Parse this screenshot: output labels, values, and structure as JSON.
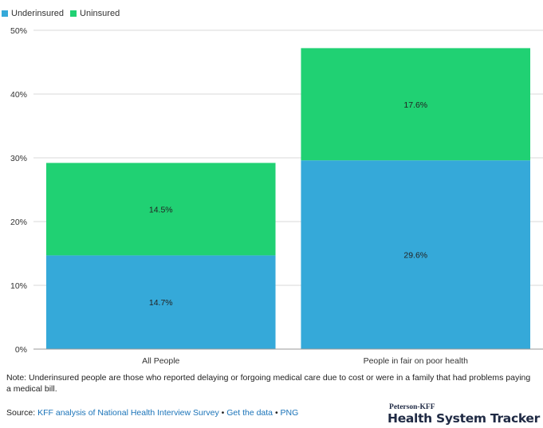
{
  "legend": {
    "items": [
      {
        "label": "Underinsured",
        "color": "#35a9d9"
      },
      {
        "label": "Uninsured",
        "color": "#20d173"
      }
    ]
  },
  "chart_data": {
    "type": "bar",
    "stacked": true,
    "categories": [
      "All People",
      "People in fair on poor health"
    ],
    "series": [
      {
        "name": "Underinsured",
        "color": "#35a9d9",
        "values": [
          14.7,
          29.6
        ],
        "labels": [
          "14.7%",
          "29.6%"
        ]
      },
      {
        "name": "Uninsured",
        "color": "#20d173",
        "values": [
          14.5,
          17.6
        ],
        "labels": [
          "14.5%",
          "17.6%"
        ]
      }
    ],
    "ylim": [
      0,
      50
    ],
    "yticks": [
      0,
      10,
      20,
      30,
      40,
      50
    ],
    "ytick_labels": [
      "0%",
      "10%",
      "20%",
      "30%",
      "40%",
      "50%"
    ],
    "grid": true,
    "legend_position": "top-left",
    "title": "",
    "xlabel": "",
    "ylabel": ""
  },
  "note": "Note: Underinsured people are those who reported delaying or forgoing medical care due to cost or were in a family that had problems paying a medical bill.",
  "source": {
    "prefix": "Source: ",
    "link_text": "KFF analysis of National Health Interview Survey",
    "sep1": " • ",
    "get_data": "Get the data",
    "sep2": " • ",
    "png": "PNG"
  },
  "brand": {
    "small": "Peterson-KFF",
    "large": "Health System Tracker"
  }
}
